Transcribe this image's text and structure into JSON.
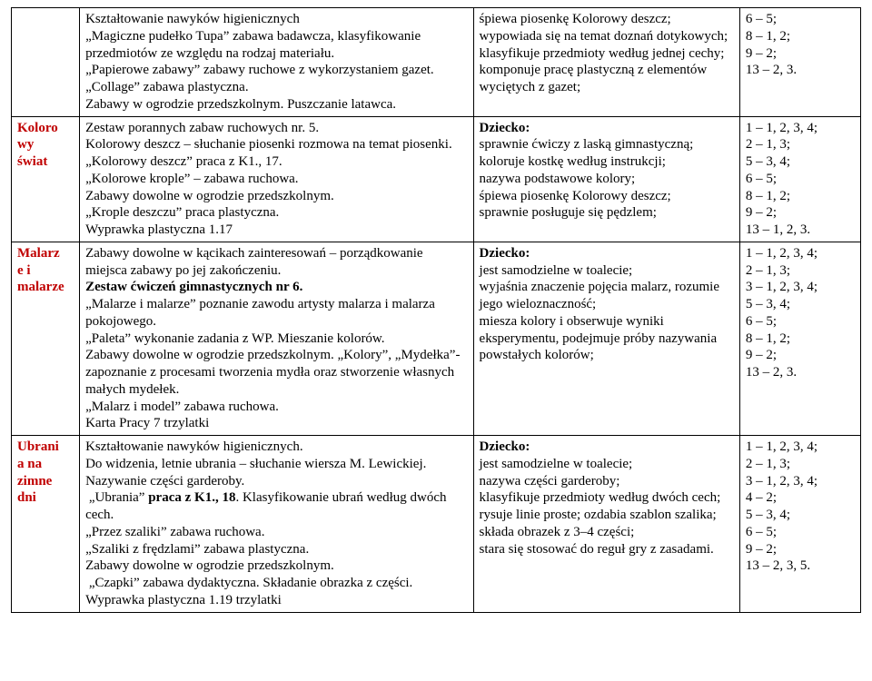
{
  "rows": [
    {
      "sidebar_html": "",
      "middle_html": "Kształtowanie nawyków higienicznych<br>„Magiczne pudełko Tupa” zabawa badawcza, klasyfikowanie przedmiotów ze względu na rodzaj materiału.<br>„Papierowe zabawy” zabawy ruchowe z wykorzystaniem gazet.<br>„Collage” zabawa plastyczna.<br>Zabawy w ogrodzie przedszkolnym. Puszczanie latawca.",
      "outcomes_html": "śpiewa piosenkę Kolorowy deszcz; wypowiada się na temat doznań dotykowych;<br>klasyfikuje przedmioty według jednej cechy;<br>komponuje pracę plastyczną z elementów wyciętych z gazet;",
      "codes_html": "6 – 5;<br>8 – 1, 2;<br>9 – 2;<br>13 – 2, 3."
    },
    {
      "sidebar_html": "<span class='red'>Koloro<br>wy<br>świat</span>",
      "middle_html": "Zestaw porannych zabaw ruchowych nr. 5.<br>Kolorowy deszcz – słuchanie piosenki rozmowa na temat piosenki.<br>„Kolorowy deszcz” praca z K1., 17.<br>„Kolorowe krople” – zabawa ruchowa.<br>Zabawy dowolne w ogrodzie przedszkolnym.<br>„Krople deszczu” praca plastyczna.<br>Wyprawka plastyczna 1.17",
      "outcomes_html": "<span class='bold'>Dziecko:</span><br>sprawnie ćwiczy z laską gimnastyczną;<br>koloruje kostkę według instrukcji;<br>nazywa podstawowe kolory;<br>śpiewa piosenkę Kolorowy deszcz;<br>sprawnie posługuje się pędzlem;",
      "codes_html": "1 – 1, 2, 3, 4;<br>2 – 1, 3;<br>5 – 3, 4;<br>6 – 5;<br>8 – 1, 2;<br>9 – 2;<br>13 – 1, 2, 3."
    },
    {
      "sidebar_html": "<span class='red'>Malarz<br>e i<br>malarze</span>",
      "middle_html": "Zabawy dowolne w kącikach zainteresowań – porządkowanie miejsca zabawy po jej zakończeniu.<br><span class='bold'>Zestaw ćwiczeń gimnastycznych nr 6.</span><br>„Malarze i malarze” poznanie zawodu artysty malarza i malarza pokojowego.<br>„Paleta” wykonanie zadania z WP. Mieszanie kolorów.<br>Zabawy dowolne w ogrodzie przedszkolnym. „Kolory”, „Mydełka”- zapoznanie z procesami tworzenia mydła oraz stworzenie własnych małych mydełek.<br>„Malarz i model” zabawa ruchowa.<br>Karta Pracy 7 trzylatki",
      "outcomes_html": "<span class='bold'>Dziecko:</span><br>jest samodzielne w toalecie;<br>wyjaśnia znaczenie pojęcia malarz, rozumie jego wieloznaczność;<br>miesza kolory i obserwuje wyniki eksperymentu, podejmuje próby nazywania powstałych kolorów;",
      "codes_html": "1 – 1, 2, 3, 4;<br>2 – 1, 3;<br>3 – 1, 2, 3, 4;<br>5 – 3, 4;<br>6 – 5;<br>8 – 1, 2;<br>9 – 2;<br>13 – 2, 3."
    },
    {
      "sidebar_html": "<span class='red'>Ubrani<br>a na<br>zimne<br>dni</span>",
      "middle_html": "Kształtowanie nawyków higienicznych.<br>Do widzenia, letnie ubrania – słuchanie wiersza M. Lewickiej. Nazywanie części garderoby.<br>&nbsp;„Ubrania” <span class='bold'>praca z K1., 18</span>. Klasyfikowanie ubrań według dwóch cech.<br>„Przez szaliki” zabawa ruchowa.<br>„Szaliki z frędzlami” zabawa plastyczna.<br>Zabawy dowolne w ogrodzie przedszkolnym.<br>&nbsp;„Czapki” zabawa dydaktyczna. Składanie obrazka z części.<br>Wyprawka plastyczna 1.19 trzylatki",
      "outcomes_html": "<span class='bold'>Dziecko:</span><br>jest samodzielne w toalecie;<br>nazywa części garderoby;<br>klasyfikuje przedmioty według dwóch cech;<br>rysuje linie proste; ozdabia szablon szalika;<br>składa obrazek z 3–4 części;<br>stara się stosować do reguł gry z zasadami.",
      "codes_html": "1 – 1, 2, 3, 4;<br>2 – 1, 3;<br>3 – 1, 2, 3, 4;<br>4 – 2;<br>5 – 3, 4;<br>6 – 5;<br>9 – 2;<br>13 – 2, 3, 5."
    }
  ]
}
